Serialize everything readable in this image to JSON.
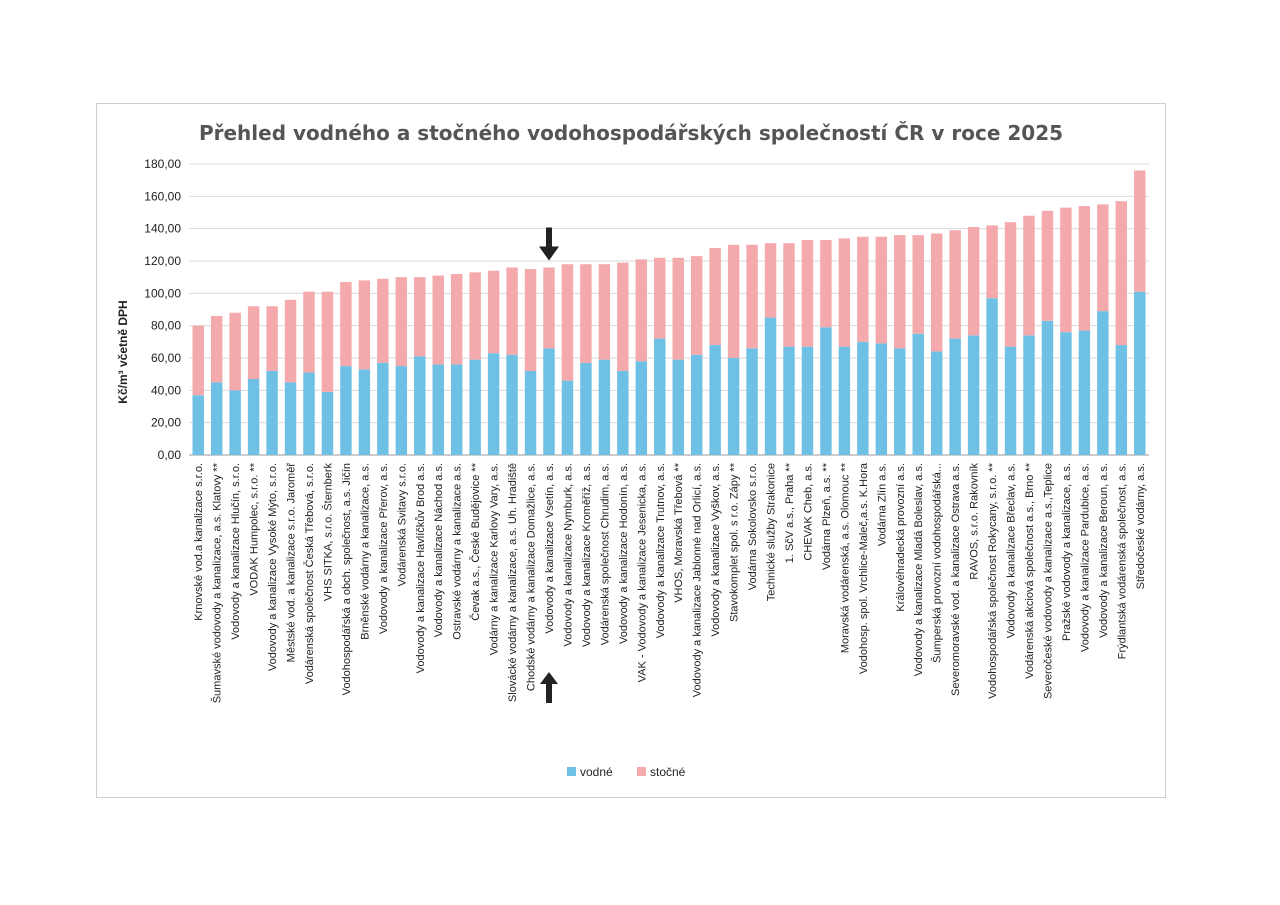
{
  "chart_data": {
    "type": "bar",
    "stacked": true,
    "title": "Přehled vodného a stočného vodohospodářských společností ČR v roce 2025",
    "xlabel": "",
    "ylabel": "Kč/m³ včetně DPH",
    "ylim": [
      0,
      180
    ],
    "yticks": [
      "0,00",
      "20,00",
      "40,00",
      "60,00",
      "80,00",
      "100,00",
      "120,00",
      "140,00",
      "160,00",
      "180,00"
    ],
    "grid": true,
    "legend": "bottom",
    "categories": [
      "Krnovské vod.a kanalizace s.r.o.",
      "Šumavské vodovody a kanalizace, a.s. Klatovy **",
      "Vodovody a kanalizace Hlučín, s.r.o.",
      "VODAK Humpolec, s.r.o. **",
      "Vodovody a kanalizace Vysoké Mýto, s.r.o.",
      "Městské vod. a kanalizace s.r.o. Jaroměř",
      "Vodárenská společnost Česká Třebová, s.r.o.",
      "VHS SITKA, s.r.o. Šternberk",
      "Vodohospodářská a obch. společnost, a.s. Jičín",
      "Brněnské vodárny a kanalizace, a.s.",
      "Vodovody a kanalizace Přerov, a.s.",
      "Vodárenská Svitavy s.r.o.",
      "Vodovody a kanalizace Havlíčkův Brod a.s.",
      "Vodovody a kanalizace Náchod a.s.",
      "Ostravské vodárny a kanalizace a.s.",
      "Čevak a.s., České Budějovice **",
      "Vodárny a kanalizace Karlovy Vary, a.s.",
      "Slovácké vodárny a kanalizace, a.s. Uh. Hradiště",
      "Chodské vodárny a kanalizace Domažlice, a.s.",
      "Vodovody a kanalizace Vsetín, a.s.",
      "Vodovody a kanalizace Nymburk, a.s.",
      "Vodovody a kanalizace Kroměříž, a.s.",
      "Vodárenská společnost Chrudim, a.s.",
      "Vodovody a kanalizace Hodonín, a.s.",
      "VAK - Vodovody a kanalizace Jesenicka, a.s.",
      "Vodovody a kanalizace Trutnov, a.s.",
      "VHOS, Moravská Třebová **",
      "Vodovody a kanalizace Jablonné nad Orlicí, a.s.",
      "Vodovody a kanalizace Vyškov, a.s.",
      "Stavokomplet spol. s r.o. Zápy **",
      "Vodárna Sokolovsko s.r.o.",
      "Technické služby Strakonice",
      "1. SčV a.s., Praha **",
      "CHEVAK Cheb, a.s.",
      "Vodárna Plzeň, a.s. **",
      "Moravská vodárenská, a.s. Olomouc **",
      "Vodohosp. spol. Vrchlice-Maleč,a.s. K.Hora",
      "Vodárna Zlín a.s.",
      "Královéhradecká provozní a.s.",
      "Vodovody a kanalizace Mladá Boleslav, a.s.",
      "Šumperská provozní vodohospodářská...",
      "Severomoravské vod. a kanalizace Ostrava a.s.",
      "RAVOS, s.r.o. Rakovník",
      "Vodohospodářská společnost Rokycany, s.r.o. **",
      "Vodovody a kanalizace Břeclav, a.s.",
      "Vodárenská akciová společnost a.s., Brno **",
      "Severočeské vodovody a kanalizace a.s.,Teplice",
      "Pražské vodovody a kanalizace, a.s.",
      "Vodovody a kanalizace Pardubice, a.s.",
      "Vodovody a kanalizace Beroun, a.s.",
      "Frýdlantská vodárenská společnost, a.s.",
      "Středočeské vodárny, a.s."
    ],
    "series": [
      {
        "name": "vodné",
        "color": "#6ec1e4",
        "values": [
          37,
          45,
          40,
          47,
          52,
          45,
          51,
          39,
          55,
          53,
          57,
          55,
          61,
          56,
          56,
          59,
          63,
          62,
          52,
          66,
          46,
          57,
          59,
          52,
          58,
          72,
          59,
          62,
          68,
          60,
          66,
          85,
          67,
          67,
          79,
          67,
          70,
          69,
          66,
          75,
          64,
          72,
          74,
          97,
          67,
          74,
          83,
          76,
          77,
          89,
          68,
          101
        ]
      },
      {
        "name": "stočné",
        "color": "#f4a9ac",
        "values": [
          43,
          41,
          48,
          45,
          40,
          51,
          50,
          62,
          52,
          55,
          52,
          55,
          49,
          55,
          56,
          54,
          51,
          54,
          63,
          50,
          72,
          61,
          59,
          67,
          63,
          50,
          63,
          61,
          60,
          70,
          64,
          46,
          64,
          66,
          54,
          67,
          65,
          66,
          70,
          61,
          73,
          67,
          67,
          45,
          77,
          74,
          68,
          77,
          77,
          66,
          89,
          75
        ]
      }
    ],
    "highlight": {
      "category": "Vodovody a kanalizace Vsetín, a.s.",
      "marker": "arrows"
    }
  }
}
